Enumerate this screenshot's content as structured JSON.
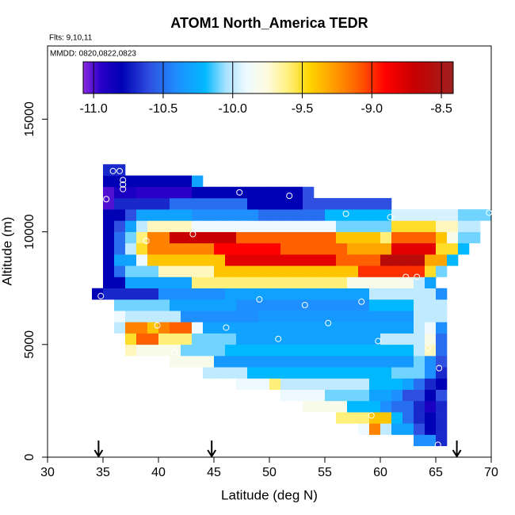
{
  "chart_data": {
    "type": "heatmap",
    "title": "ATOM1 North_America TEDR",
    "subtitle": "Flts: 9,10,11",
    "annotation": "MMDD: 0820,0822,0823",
    "x_label": "Latitude (deg N)",
    "y_label": "Altitude (m)",
    "xlim": [
      30,
      70
    ],
    "xticks": [
      30,
      35,
      40,
      45,
      50,
      55,
      60,
      65,
      70
    ],
    "ylim": [
      0,
      18250
    ],
    "yticks": [
      0,
      5000,
      10000,
      15000
    ],
    "zlim": [
      -11.075,
      -8.415
    ],
    "zticks": [
      {
        "value": -11,
        "label": "-11.0"
      },
      {
        "value": -10.5,
        "label": "-10.5"
      },
      {
        "value": -10,
        "label": "-10.0"
      },
      {
        "value": -9.5,
        "label": "-9.5"
      },
      {
        "value": -9,
        "label": "-9.0"
      },
      {
        "value": -8.5,
        "label": "-8.5"
      }
    ],
    "colorscale": [
      [
        -11.075,
        "#8a2be2"
      ],
      [
        -10.95,
        "#2a00c8"
      ],
      [
        -10.8,
        "#0000b4"
      ],
      [
        -10.6,
        "#2f4fe0"
      ],
      [
        -10.4,
        "#1e8fff"
      ],
      [
        -10.2,
        "#00b8ff"
      ],
      [
        -10.05,
        "#a8e2ff"
      ],
      [
        -9.9,
        "#eefaff"
      ],
      [
        -9.75,
        "#fffbe0"
      ],
      [
        -9.6,
        "#fff07a"
      ],
      [
        -9.45,
        "#ffd500"
      ],
      [
        -9.3,
        "#ffa500"
      ],
      [
        -9.1,
        "#ff6000"
      ],
      [
        -8.9,
        "#ff0000"
      ],
      [
        -8.7,
        "#c80000"
      ],
      [
        -8.415,
        "#a02020"
      ]
    ],
    "xbins": [
      34,
      35,
      36,
      37,
      38,
      39,
      40,
      41,
      42,
      43,
      44,
      45,
      46,
      47,
      48,
      49,
      50,
      51,
      52,
      53,
      54,
      55,
      56,
      57,
      58,
      59,
      60,
      61,
      62,
      63,
      64,
      65,
      66,
      67,
      68,
      69,
      70
    ],
    "ybins": [
      500,
      1000,
      1500,
      2000,
      2500,
      3000,
      3500,
      4000,
      4500,
      5000,
      5500,
      6000,
      6500,
      7000,
      7500,
      8000,
      8500,
      9000,
      9500,
      10000,
      10500,
      11000,
      11500,
      12000,
      12500,
      13000
    ],
    "values": [
      [
        null,
        null,
        null,
        null,
        null,
        null,
        null,
        null,
        null,
        null,
        null,
        null,
        null,
        null,
        null,
        null,
        null,
        null,
        null,
        null,
        null,
        null,
        null,
        null,
        null,
        null,
        null,
        null,
        null,
        -10.4,
        -10.4,
        -10.7,
        null,
        null,
        null,
        null
      ],
      [
        null,
        null,
        null,
        null,
        null,
        null,
        null,
        null,
        null,
        null,
        null,
        null,
        null,
        null,
        null,
        null,
        null,
        null,
        null,
        null,
        null,
        null,
        null,
        null,
        -9.9,
        -9.2,
        -10.0,
        -10.3,
        -10.3,
        -10.6,
        -10.8,
        -10.7,
        null,
        null,
        null,
        null
      ],
      [
        null,
        null,
        null,
        null,
        null,
        null,
        null,
        null,
        null,
        null,
        null,
        null,
        null,
        null,
        null,
        null,
        null,
        null,
        null,
        null,
        null,
        null,
        -9.6,
        -9.6,
        -9.6,
        -9.4,
        -9.4,
        -10.2,
        -10.5,
        -10.7,
        -10.8,
        -10.7,
        null,
        null,
        null,
        null
      ],
      [
        null,
        null,
        null,
        null,
        null,
        null,
        null,
        null,
        null,
        null,
        null,
        null,
        null,
        null,
        null,
        null,
        null,
        null,
        null,
        -9.8,
        -9.8,
        -9.8,
        -9.8,
        -10.2,
        -10.2,
        -10.2,
        -10.4,
        -10.5,
        -10.5,
        -10.7,
        -10.9,
        -10.7,
        null,
        null,
        null,
        null
      ],
      [
        null,
        null,
        null,
        null,
        null,
        null,
        null,
        null,
        null,
        null,
        null,
        null,
        null,
        null,
        null,
        null,
        null,
        -9.9,
        -9.9,
        -9.9,
        -9.9,
        -10.1,
        -10.1,
        -10.1,
        -10.1,
        -10.3,
        -10.3,
        -10.4,
        -10.6,
        -10.6,
        -10.8,
        -10.6,
        null,
        null,
        null,
        null
      ],
      [
        null,
        null,
        null,
        null,
        null,
        null,
        null,
        null,
        null,
        null,
        null,
        null,
        null,
        -9.9,
        -9.9,
        -9.9,
        -9.6,
        -10.0,
        -10.0,
        -10.0,
        -10.0,
        -10.0,
        -10.0,
        -10.0,
        -10.0,
        -10.2,
        -10.2,
        -10.2,
        -10.3,
        -10.5,
        -10.7,
        -10.8,
        null,
        null,
        null,
        null
      ],
      [
        null,
        null,
        null,
        null,
        null,
        null,
        null,
        null,
        null,
        null,
        -10.0,
        -10.0,
        -10.0,
        -10.0,
        -10.2,
        -10.2,
        -10.2,
        -10.2,
        -10.2,
        -10.2,
        -10.2,
        -10.2,
        -10.2,
        -10.2,
        -10.2,
        -10.2,
        -10.2,
        -10.1,
        -10.1,
        -10.1,
        -10.4,
        -10.7,
        null,
        null,
        null,
        null
      ],
      [
        null,
        null,
        null,
        null,
        null,
        null,
        null,
        -9.8,
        -9.8,
        -9.8,
        -9.8,
        -10.35,
        -10.35,
        -10.35,
        -10.35,
        -10.35,
        -10.35,
        -10.35,
        -10.35,
        -10.35,
        -10.35,
        -10.35,
        -10.35,
        -10.35,
        -10.35,
        -10.35,
        -10.35,
        -10.35,
        -10.35,
        -10.1,
        -10.4,
        -10.6,
        null,
        null,
        null,
        null
      ],
      [
        null,
        null,
        null,
        -9.7,
        -9.8,
        -9.8,
        -9.8,
        -9.8,
        -10.1,
        -10.1,
        -10.1,
        -10.1,
        -10.2,
        -10.2,
        -10.2,
        -10.2,
        -10.2,
        -10.2,
        -10.2,
        -10.2,
        -10.2,
        -10.2,
        -10.2,
        -10.2,
        -10.2,
        -10.2,
        -10.2,
        -10.2,
        -10.2,
        -10.0,
        -9.7,
        -10.5,
        null,
        null,
        null,
        null
      ],
      [
        null,
        null,
        null,
        -9.5,
        -9.1,
        -9.1,
        -9.6,
        -9.6,
        -9.6,
        -10.1,
        -10.1,
        -10.1,
        -10.1,
        -10.3,
        -10.3,
        -10.3,
        -10.3,
        -10.3,
        -10.3,
        -10.3,
        -10.3,
        -10.3,
        -10.3,
        -10.3,
        -10.3,
        -10.3,
        -10.0,
        -10.0,
        -10.0,
        -10.0,
        -9.8,
        -10.5,
        null,
        null,
        null,
        null
      ],
      [
        null,
        null,
        -10.0,
        -9.2,
        -9.2,
        -9.4,
        -9.2,
        -9.1,
        -9.1,
        -9.9,
        -10.3,
        -10.3,
        -10.3,
        -10.3,
        -10.3,
        -10.3,
        -10.3,
        -10.3,
        -10.3,
        -10.3,
        -10.3,
        -10.3,
        -10.3,
        -10.3,
        -10.3,
        -10.3,
        -10.3,
        -10.3,
        -10.3,
        -10.0,
        -9.9,
        -10.4,
        null,
        null,
        null,
        null
      ],
      [
        null,
        null,
        -9.9,
        -10.0,
        -10.0,
        -10.0,
        -10.0,
        -10.0,
        -10.4,
        -10.4,
        -10.4,
        -10.4,
        -10.4,
        -10.4,
        -10.4,
        -10.35,
        -10.35,
        -10.35,
        -10.35,
        -10.35,
        -10.35,
        -10.35,
        -10.35,
        -10.35,
        -10.35,
        -10.35,
        -10.35,
        -10.35,
        -10.35,
        -10.0,
        -10.0,
        -10.0,
        null,
        null,
        null,
        null
      ],
      [
        null,
        null,
        -10.1,
        -10.1,
        -10.1,
        -10.1,
        -10.1,
        -10.3,
        -10.3,
        -10.3,
        -10.3,
        -10.3,
        -10.3,
        -10.4,
        -10.4,
        -10.4,
        -10.4,
        -10.4,
        -10.4,
        -10.4,
        -10.4,
        -10.4,
        -10.4,
        -10.4,
        -10.4,
        -10.2,
        -10.2,
        -10.2,
        -10.2,
        -10.0,
        -10.0,
        -10.0,
        null,
        null,
        null,
        null
      ],
      [
        -10.8,
        -10.7,
        -10.7,
        -10.7,
        -10.7,
        -10.7,
        -10.4,
        -10.4,
        -10.4,
        -10.4,
        -10.4,
        -10.4,
        -10.3,
        -10.3,
        -10.3,
        -10.3,
        -10.3,
        -10.3,
        -10.3,
        -10.3,
        -10.3,
        -10.3,
        -10.3,
        -10.3,
        -10.3,
        -10.0,
        -10.0,
        -10.0,
        -10.0,
        -10.0,
        -10.0,
        -10.4,
        null,
        null,
        null,
        null
      ],
      [
        null,
        -10.8,
        -10.8,
        -10.3,
        -10.3,
        -10.3,
        -10.3,
        -10.3,
        -10.3,
        -9.6,
        -9.6,
        -9.6,
        -9.6,
        -9.6,
        -9.6,
        -9.6,
        -9.6,
        -9.6,
        -9.6,
        -9.6,
        -9.6,
        -9.6,
        -9.6,
        -9.8,
        -9.8,
        -9.8,
        -9.8,
        -9.8,
        -9.8,
        -10.0,
        -10.3,
        null,
        null,
        null,
        null,
        null
      ],
      [
        null,
        -10.8,
        -10.5,
        -10.1,
        -10.1,
        -10.1,
        -9.7,
        -9.7,
        -9.7,
        -9.7,
        -9.7,
        -9.4,
        -9.4,
        -9.4,
        -9.4,
        -9.4,
        -9.4,
        -9.4,
        -9.4,
        -9.4,
        -9.4,
        -9.4,
        -9.4,
        -9.4,
        -9.0,
        -9.0,
        -9.0,
        -9.0,
        -9.0,
        -9.0,
        -9.5,
        -10.1,
        null,
        null,
        null,
        null
      ],
      [
        null,
        -10.8,
        -10.3,
        -10.3,
        -9.9,
        -9.4,
        -9.4,
        -9.4,
        -9.4,
        -9.4,
        -9.4,
        -9.4,
        -8.8,
        -8.8,
        -8.8,
        -8.8,
        -8.8,
        -8.8,
        -8.8,
        -8.8,
        -8.8,
        -8.8,
        -9.1,
        -9.1,
        -9.1,
        -9.1,
        -8.6,
        -8.6,
        -8.6,
        -8.6,
        -9.3,
        -9.3,
        -10.2,
        null,
        null,
        null
      ],
      [
        null,
        -10.8,
        -10.5,
        -10.0,
        -9.5,
        -9.2,
        -9.2,
        -9.2,
        -9.2,
        -9.2,
        -9.2,
        -8.9,
        -8.9,
        -8.9,
        -8.9,
        -8.9,
        -8.9,
        -9.1,
        -9.1,
        -9.1,
        -9.1,
        -9.1,
        -9.1,
        -9.3,
        -9.3,
        -9.3,
        -9.3,
        -8.8,
        -8.8,
        -8.8,
        -8.8,
        -9.5,
        -9.5,
        -10.2,
        null,
        null
      ],
      [
        null,
        -10.8,
        -10.5,
        -10.1,
        -9.6,
        -9.2,
        -9.2,
        -8.7,
        -8.7,
        -8.7,
        -8.7,
        -8.7,
        -8.7,
        -9.1,
        -9.1,
        -9.1,
        -9.1,
        -9.1,
        -9.1,
        -9.1,
        -9.1,
        -9.1,
        -9.4,
        -9.4,
        -9.4,
        -9.4,
        -9.6,
        -9.1,
        -9.1,
        -9.1,
        -9.1,
        -9.4,
        -9.8,
        -10.1,
        -10.1,
        null
      ],
      [
        null,
        -10.8,
        -10.6,
        -10.3,
        -10.0,
        -9.7,
        -9.7,
        -9.7,
        -9.7,
        -9.9,
        -9.9,
        -9.9,
        -9.9,
        -9.9,
        -9.9,
        -9.9,
        -9.9,
        -9.9,
        -9.9,
        -9.9,
        -9.9,
        -9.9,
        -10.1,
        -10.1,
        -10.1,
        -10.1,
        -10.1,
        -9.5,
        -9.5,
        -9.5,
        -9.5,
        -9.7,
        -9.7,
        -10.0,
        -10.0,
        null
      ],
      [
        null,
        -10.8,
        -10.8,
        -10.6,
        -10.3,
        -10.3,
        -10.3,
        -10.3,
        -10.3,
        -10.4,
        -10.4,
        -10.4,
        -10.4,
        -10.4,
        -10.4,
        -10.5,
        -10.5,
        -10.5,
        -10.5,
        -10.5,
        -10.5,
        -10.2,
        -10.2,
        -10.2,
        -10.2,
        -10.2,
        -10.2,
        -9.95,
        -9.95,
        -9.95,
        -9.95,
        -9.95,
        -9.95,
        -10.1,
        -10.1,
        -10.1
      ],
      [
        null,
        -11.0,
        -10.7,
        -10.7,
        -10.7,
        -10.7,
        -10.7,
        -10.5,
        -10.5,
        -10.5,
        -10.5,
        -10.5,
        -10.5,
        -10.5,
        -10.8,
        -10.8,
        -10.8,
        -10.8,
        -10.8,
        -10.6,
        -10.6,
        -10.6,
        -10.6,
        -10.6,
        -10.6,
        -10.6,
        -10.6,
        null,
        null,
        null,
        null,
        null,
        null,
        null,
        null,
        null
      ],
      [
        null,
        -11.0,
        -10.9,
        -10.9,
        -10.95,
        -10.95,
        -10.95,
        -10.95,
        -10.95,
        -10.8,
        -10.8,
        -10.8,
        -10.8,
        -10.8,
        -10.8,
        -10.8,
        -10.8,
        -10.8,
        -10.8,
        -10.6,
        null,
        null,
        null,
        null,
        null,
        null,
        null,
        null,
        null,
        null,
        null,
        null,
        null,
        null,
        null,
        null
      ],
      [
        null,
        -10.8,
        -10.8,
        -10.8,
        -10.8,
        -10.8,
        -10.8,
        -10.8,
        -10.8,
        -10.3,
        null,
        null,
        null,
        null,
        null,
        null,
        null,
        null,
        null,
        null,
        null,
        null,
        null,
        null,
        null,
        null,
        null,
        null,
        null,
        null,
        null,
        null,
        null,
        null,
        null,
        null
      ],
      [
        null,
        -10.7,
        -10.7,
        null,
        null,
        null,
        null,
        null,
        null,
        null,
        null,
        null,
        null,
        null,
        null,
        null,
        null,
        null,
        null,
        null,
        null,
        null,
        null,
        null,
        null,
        null,
        null,
        null,
        null,
        null,
        null,
        null,
        null,
        null,
        null,
        null
      ]
    ],
    "points": {
      "x": [
        35.9,
        36.5,
        36.8,
        36.8,
        36.8,
        35.3,
        47.3,
        51.8,
        56.9,
        60.9,
        69.8,
        43.1,
        38.9,
        62.3,
        63.3,
        65.9,
        34.8,
        49.1,
        53.2,
        58.3,
        55.3,
        39.9,
        46.1,
        50.8,
        59.8,
        64.3,
        41.4,
        65.3,
        59.2,
        65.2
      ],
      "y": [
        12700,
        12700,
        12300,
        12100,
        11900,
        11450,
        11750,
        11600,
        10800,
        10650,
        10850,
        9900,
        9600,
        8000,
        8000,
        7850,
        7150,
        7000,
        6750,
        6900,
        5950,
        5850,
        5750,
        5250,
        5150,
        4850,
        4650,
        3950,
        1850,
        550
      ]
    },
    "arrows": [
      34.6,
      44.8,
      66.9
    ]
  }
}
